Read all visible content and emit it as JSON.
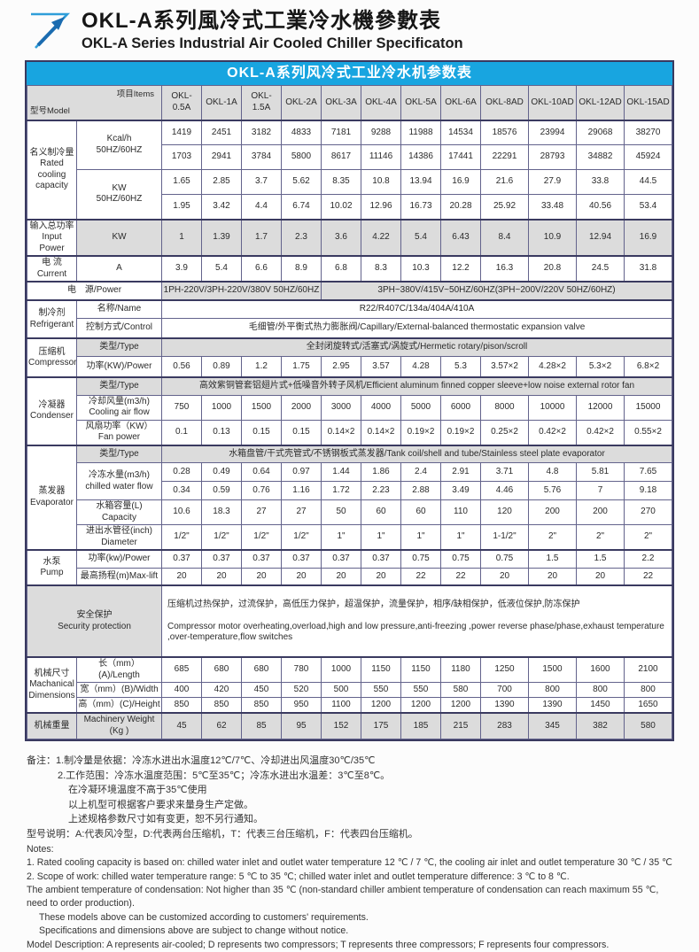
{
  "header": {
    "title_zh": "OKL-A系列風冷式工業冷水機參數表",
    "title_en": "OKL-A Series Industrial Air Cooled Chiller Specificaton"
  },
  "colors": {
    "title_bar_bg": "#18a5e0",
    "row_shade": "#dcdcdc",
    "border_thin": "#63638c",
    "border_thick": "#3a3a60",
    "logo_light_blue": "#2f9ed9",
    "logo_dark_blue": "#1b6cb0"
  },
  "table": {
    "title": "OKL-A系列风冷式工业冷水机参数表",
    "corner": {
      "model": "型号Model",
      "items": "项目Items"
    },
    "models": [
      "OKL-0.5A",
      "OKL-1A",
      "OKL-1.5A",
      "OKL-2A",
      "OKL-3A",
      "OKL-4A",
      "OKL-5A",
      "OKL-6A",
      "OKL-8AD",
      "OKL-10AD",
      "OKL-12AD",
      "OKL-15AD"
    ],
    "rated": {
      "label": "名义制冷量\nRated\ncooling\ncapacity",
      "kcal_unit": "Kcal/h\n50HZ/60HZ",
      "kw_unit": "KW\n50HZ/60HZ",
      "kcal_50": [
        1419,
        2451,
        3182,
        4833,
        7181,
        9288,
        11988,
        14534,
        18576,
        23994,
        29068,
        38270
      ],
      "kcal_60": [
        1703,
        2941,
        3784,
        5800,
        8617,
        11146,
        14386,
        17441,
        22291,
        28793,
        34882,
        45924
      ],
      "kw_50": [
        1.65,
        2.85,
        3.7,
        5.62,
        8.35,
        10.8,
        13.94,
        16.9,
        21.6,
        27.9,
        33.8,
        44.5
      ],
      "kw_60": [
        1.95,
        3.42,
        4.4,
        6.74,
        10.02,
        12.96,
        16.73,
        20.28,
        25.92,
        33.48,
        40.56,
        53.4
      ]
    },
    "input_power": {
      "label": "输入总功率\nInput Power",
      "unit": "KW",
      "values": [
        1,
        1.39,
        1.7,
        2.3,
        3.6,
        4.22,
        5.4,
        6.43,
        8.4,
        10.9,
        12.94,
        16.9
      ]
    },
    "current": {
      "label": "电 流\nCurrent",
      "unit": "A",
      "values": [
        3.9,
        5.4,
        6.6,
        8.9,
        6.8,
        8.3,
        10.3,
        12.2,
        16.3,
        20.8,
        24.5,
        31.8
      ]
    },
    "power_supply": {
      "label": "电　源/Power",
      "group1": "1PH-220V/3PH-220V/380V 50HZ/60HZ",
      "group2": "3PH~380V/415V~50HZ/60HZ(3PH~200V/220V  50HZ/60HZ)"
    },
    "refrigerant": {
      "label": "制冷剂\nRefrigerant",
      "name_label": "名称/Name",
      "name_value": "R22/R407C/134a/404A/410A",
      "control_label": "控制方式/Control",
      "control_value": "毛细管/外平衡式热力膨胀阀/Capillary/External-balanced thermostatic expansion valve"
    },
    "compressor": {
      "label": "压缩机\nCompressor",
      "type_label": "类型/Type",
      "type_value": "全封闭旋转式/活塞式/涡旋式/Hermetic rotary/pison/scroll",
      "power_label": "功率(KW)/Power",
      "power_values": [
        "0.56",
        "0.89",
        "1.2",
        "1.75",
        "2.95",
        "3.57",
        "4.28",
        "5.3",
        "3.57×2",
        "4.28×2",
        "5.3×2",
        "6.8×2"
      ]
    },
    "condenser": {
      "label": "冷凝器\nCondenser",
      "type_label": "类型/Type",
      "type_value": "高效紫铜管套铝翅片式+低噪音外转子风机/Efficient aluminum finned copper sleeve+low noise external rotor fan",
      "airflow_label": "冷却风量(m3/h)\nCooling air flow",
      "airflow_values": [
        750,
        1000,
        1500,
        2000,
        3000,
        4000,
        5000,
        6000,
        8000,
        10000,
        12000,
        15000
      ],
      "fan_label": "风扇功率（KW）\nFan power",
      "fan_values": [
        "0.1",
        "0.13",
        "0.15",
        "0.15",
        "0.14×2",
        "0.14×2",
        "0.19×2",
        "0.19×2",
        "0.25×2",
        "0.42×2",
        "0.42×2",
        "0.55×2"
      ]
    },
    "evaporator": {
      "label": "蒸发器\nEvaporator",
      "type_label": "类型/Type",
      "type_value": "水箱盘管/干式壳管式/不锈钢板式蒸发器/Tank coil/shell and tube/Stainless steel plate evaporator",
      "flow_label": "冷冻水量(m3/h)\nchilled water flow",
      "flow_50": [
        0.28,
        0.49,
        0.64,
        0.97,
        1.44,
        1.86,
        2.4,
        2.91,
        3.71,
        4.8,
        5.81,
        7.65
      ],
      "flow_60": [
        0.34,
        0.59,
        0.76,
        1.16,
        1.72,
        2.23,
        2.88,
        3.49,
        4.46,
        5.76,
        7,
        9.18
      ],
      "tank_label": "水箱容量(L)\nCapacity",
      "tank_values": [
        10.6,
        18.3,
        27,
        27,
        50,
        60,
        60,
        110,
        120,
        200,
        200,
        270
      ],
      "pipe_label": "进出水管径(inch)\nDiameter",
      "pipe_values": [
        "1/2\"",
        "1/2\"",
        "1/2\"",
        "1/2\"",
        "1\"",
        "1\"",
        "1\"",
        "1\"",
        "1-1/2\"",
        "2\"",
        "2\"",
        "2\""
      ]
    },
    "pump": {
      "label": "水泵\nPump",
      "power_label": "功率(kw)/Power",
      "power_values": [
        0.37,
        0.37,
        0.37,
        0.37,
        0.37,
        0.37,
        0.75,
        0.75,
        0.75,
        1.5,
        1.5,
        2.2
      ],
      "lift_label": "最高扬程(m)Max-lift",
      "lift_values": [
        20,
        20,
        20,
        20,
        20,
        20,
        22,
        22,
        20,
        20,
        20,
        22
      ]
    },
    "safety": {
      "label": "安全保护\nSecurity protection",
      "zh": "压缩机过热保护，过流保护，高低压力保护，超温保护，流量保护，相序/缺相保护，低液位保护,防冻保护",
      "en": "Compressor motor overheating,overload,high and low pressure,anti-freezing ,power reverse phase/phase,exhaust temperature ,over-temperature,flow switches"
    },
    "dimensions": {
      "label": "机械尺寸\nMachanical\nDimensions",
      "length_label": "长（mm）(A)/Length",
      "length_values": [
        685,
        680,
        680,
        780,
        1000,
        1150,
        1150,
        1180,
        1250,
        1500,
        1600,
        2100
      ],
      "width_label": "宽（mm）(B)/Width",
      "width_values": [
        400,
        420,
        450,
        520,
        500,
        550,
        550,
        580,
        700,
        800,
        800,
        800
      ],
      "height_label": "高（mm）(C)/Height",
      "height_values": [
        850,
        850,
        850,
        950,
        1100,
        1200,
        1200,
        1200,
        1390,
        1390,
        1450,
        1650
      ]
    },
    "weight": {
      "label": "机械重量",
      "unit_label": "Machinery Weight\n(Kg )",
      "values": [
        45,
        62,
        85,
        95,
        152,
        175,
        185,
        215,
        283,
        345,
        382,
        580
      ]
    }
  },
  "notes_zh": [
    "备注：1.制冷量是依据：冷冻水进出水温度12℃/7℃、冷却进出风温度30℃/35℃",
    "2.工作范围：冷冻水温度范围：5℃至35℃；冷冻水进出水温差：3℃至8℃。",
    "在冷凝环境温度不高于35℃使用",
    "以上机型可根据客户要求来量身生产定做。",
    "上述规格参数尺寸如有变更，恕不另行通知。",
    "型号说明：A:代表风冷型，D:代表两台压缩机，T：代表三台压缩机，F：代表四台压缩机。"
  ],
  "notes_en": [
    "Notes:",
    "1. Rated cooling capacity is based on: chilled water inlet and outlet water temperature 12 ℃ / 7 ℃, the cooling air inlet and outlet temperature 30 ℃ / 35 ℃",
    "2. Scope of work: chilled water temperature range: 5 ℃ to 35 ℃; chilled water inlet and outlet temperature difference: 3 ℃ to 8 ℃.",
    "The ambient temperature of condensation: Not higher than 35 ℃ (non-standard chiller ambient temperature of condensation can reach maximum 55 ℃, need to order production).",
    "These models above can be customized according to customers'  requirements.",
    "Specifications and dimensions above are subject to change without notice.",
    "Model Description: A represents air-cooled; D represents two compressors; T represents three compressors; F represents four compressors."
  ]
}
